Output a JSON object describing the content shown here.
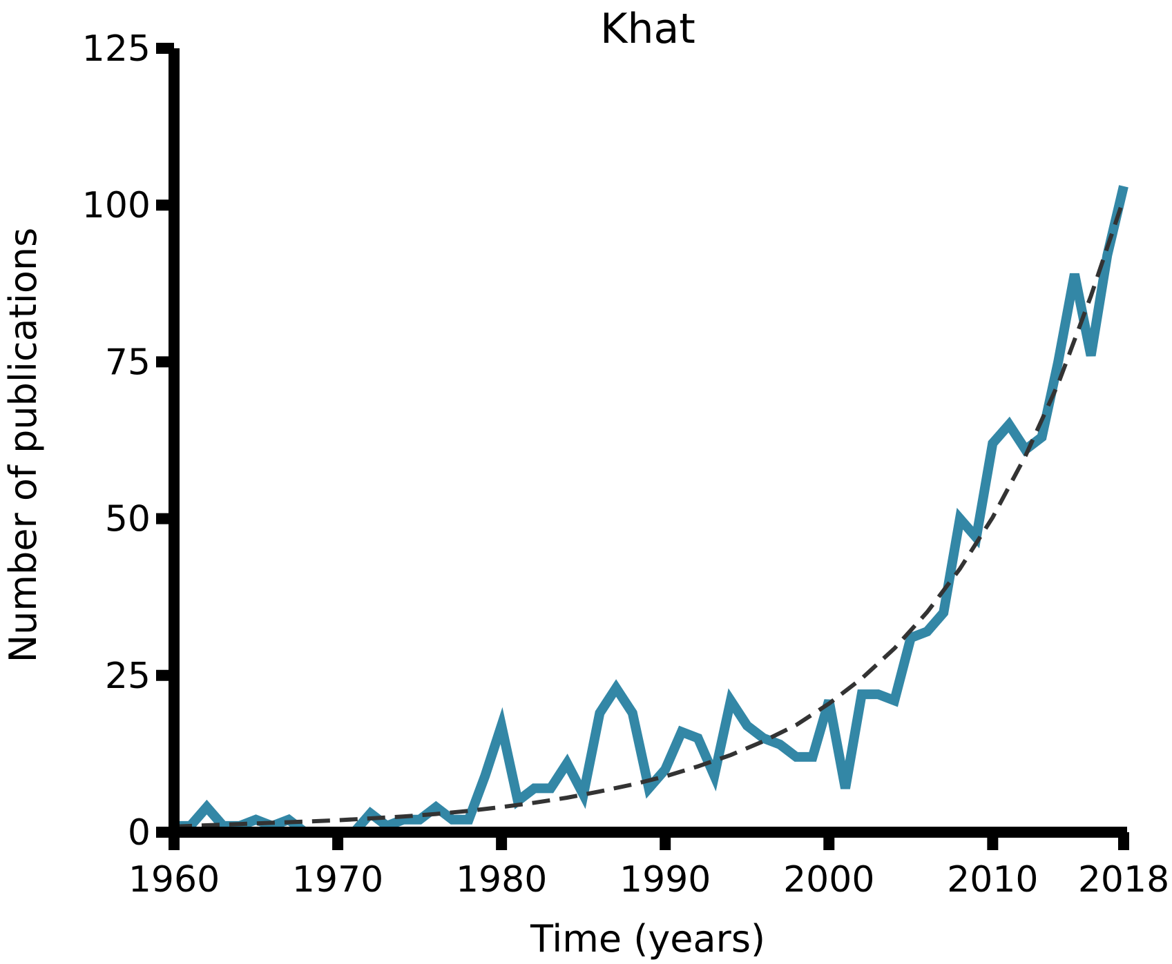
{
  "chart_data": {
    "type": "line",
    "title": "Khat",
    "xlabel": "Time (years)",
    "ylabel": "Number of publications",
    "xlim": [
      1960,
      2018
    ],
    "ylim": [
      0,
      125
    ],
    "x_ticks": [
      "1960",
      "1970",
      "1980",
      "1990",
      "2000",
      "2010",
      "2018"
    ],
    "y_ticks": [
      "0",
      "25",
      "50",
      "75",
      "100",
      "125"
    ],
    "grid": false,
    "legend": "none",
    "colors": {
      "data": "#3387a6",
      "trend": "#333333",
      "axis": "#000000"
    },
    "series": [
      {
        "style": "solid",
        "x": [
          1960,
          1961,
          1962,
          1963,
          1964,
          1965,
          1966,
          1967,
          1968,
          1969,
          1970,
          1971,
          1972,
          1973,
          1974,
          1975,
          1976,
          1977,
          1978,
          1979,
          1980,
          1981,
          1982,
          1983,
          1984,
          1985,
          1986,
          1987,
          1988,
          1989,
          1990,
          1991,
          1992,
          1993,
          1994,
          1995,
          1996,
          1997,
          1998,
          1999,
          2000,
          2001,
          2002,
          2003,
          2004,
          2005,
          2006,
          2007,
          2008,
          2009,
          2010,
          2011,
          2012,
          2013,
          2014,
          2015,
          2016,
          2017,
          2018
        ],
        "y": [
          1,
          1,
          4,
          1,
          1,
          2,
          1,
          2,
          0,
          0,
          0,
          0,
          3,
          1,
          2,
          2,
          4,
          2,
          2,
          9,
          17,
          5,
          7,
          7,
          11,
          6,
          19,
          23,
          19,
          7,
          10,
          16,
          15,
          9,
          21,
          17,
          15,
          14,
          12,
          12,
          21,
          7,
          22,
          22,
          21,
          31,
          32,
          35,
          50,
          47,
          62,
          65,
          61,
          63,
          75,
          89,
          76,
          92,
          103
        ]
      },
      {
        "style": "dashed",
        "x": [
          1960,
          1962,
          1964,
          1966,
          1968,
          1970,
          1972,
          1974,
          1976,
          1978,
          1980,
          1982,
          1984,
          1986,
          1988,
          1990,
          1992,
          1994,
          1996,
          1998,
          2000,
          2002,
          2004,
          2006,
          2008,
          2010,
          2012,
          2014,
          2016,
          2018
        ],
        "y": [
          0.9,
          1.1,
          1.3,
          1.5,
          1.7,
          1.9,
          2.2,
          2.5,
          2.9,
          3.4,
          4.0,
          4.7,
          5.5,
          6.5,
          7.6,
          8.9,
          10.5,
          12.3,
          14.5,
          17.1,
          20.5,
          24.5,
          29.3,
          35.1,
          42.0,
          50.2,
          60.0,
          71.5,
          85.5,
          101
        ]
      }
    ]
  }
}
